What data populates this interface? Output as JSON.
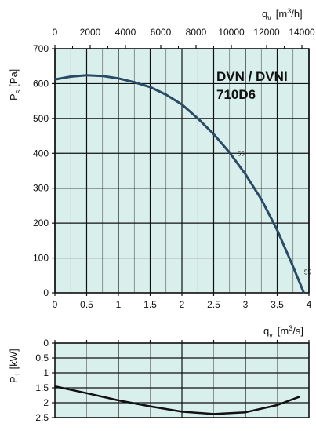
{
  "chart_data": [
    {
      "type": "line",
      "title": "DVN / DVNI",
      "subtitle": "710D6",
      "xlabel": "q",
      "xlabel_sub": "v",
      "xunit": "[m",
      "xunit_sup": "3",
      "xunit_end": "/s]",
      "x2label": "q",
      "x2label_sub": "v",
      "x2unit": "[m",
      "x2unit_sup": "3",
      "x2unit_end": "/h]",
      "ylabel": "P",
      "ylabel_sub": "s",
      "yunit": "[Pa]",
      "xlim": [
        0,
        4
      ],
      "ylim": [
        0,
        700
      ],
      "x2lim": [
        0,
        14400
      ],
      "xticks": [
        "0",
        "0.5",
        "1",
        "1.5",
        "2",
        "2.5",
        "3",
        "3.5",
        "4"
      ],
      "x2ticks": [
        "0",
        "2000",
        "4000",
        "6000",
        "8000",
        "10000",
        "12000",
        "14000"
      ],
      "yticks": [
        "0",
        "100",
        "200",
        "300",
        "400",
        "500",
        "600",
        "700"
      ],
      "grid": true,
      "series": [
        {
          "x": [
            0,
            0.25,
            0.5,
            0.75,
            1.0,
            1.25,
            1.5,
            1.75,
            2.0,
            2.25,
            2.5,
            2.75,
            3.0,
            3.25,
            3.5,
            3.75,
            3.92
          ],
          "y": [
            612,
            620,
            624,
            622,
            615,
            604,
            590,
            568,
            540,
            500,
            455,
            402,
            340,
            268,
            180,
            75,
            0
          ],
          "color": "#2a4a66"
        }
      ],
      "annotations": [
        {
          "text": "55",
          "x": 2.85,
          "y": 400
        },
        {
          "text": "55",
          "x": 3.9,
          "y": 60
        }
      ]
    },
    {
      "type": "line",
      "xlabel": "q",
      "xlabel_sub": "v",
      "xunit": "[m",
      "xunit_sup": "3",
      "xunit_end": "/s]",
      "ylabel": "P",
      "ylabel_sub": "1",
      "yunit": "[kW]",
      "xlim": [
        0,
        4
      ],
      "ylim": [
        0,
        2.5
      ],
      "y_inverted": true,
      "yticks": [
        "0",
        "0.5",
        "1",
        "1.5",
        "2",
        "2.5"
      ],
      "grid": true,
      "series": [
        {
          "x": [
            0,
            0.5,
            1.0,
            1.5,
            2.0,
            2.5,
            3.0,
            3.5,
            3.85
          ],
          "y": [
            1.45,
            1.68,
            1.92,
            2.12,
            2.3,
            2.38,
            2.32,
            2.08,
            1.8
          ],
          "color": "#111111"
        }
      ]
    }
  ]
}
